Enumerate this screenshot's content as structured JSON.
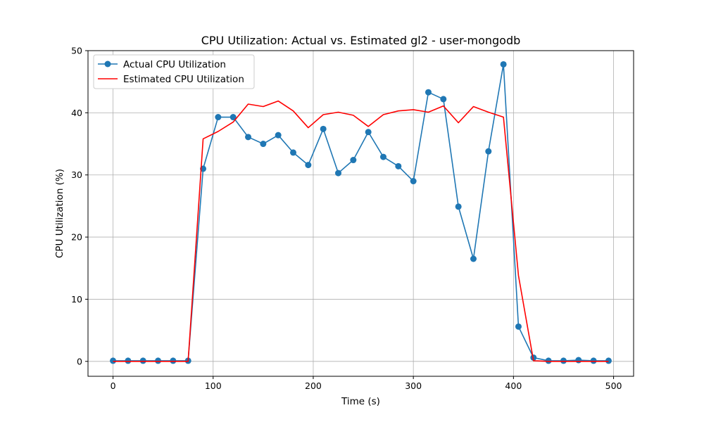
{
  "chart_data": {
    "type": "line",
    "title": "CPU Utilization: Actual vs. Estimated gl2 - user-mongodb",
    "xlabel": "Time (s)",
    "ylabel": "CPU Utilization (%)",
    "xlim": [
      -25,
      520
    ],
    "ylim": [
      -2.4,
      50
    ],
    "xticks": [
      0,
      100,
      200,
      300,
      400,
      500
    ],
    "yticks": [
      0,
      10,
      20,
      30,
      40,
      50
    ],
    "grid": true,
    "legend_position": "top-left",
    "x": [
      0,
      15,
      30,
      45,
      60,
      75,
      90,
      105,
      120,
      135,
      150,
      165,
      180,
      195,
      210,
      225,
      240,
      255,
      270,
      285,
      300,
      315,
      330,
      345,
      360,
      375,
      390,
      405,
      420,
      435,
      450,
      465,
      480,
      495
    ],
    "series": [
      {
        "name": "Actual CPU Utilization",
        "color": "#1f77b4",
        "marker": "circle",
        "values": [
          0.1,
          0.1,
          0.1,
          0.1,
          0.1,
          0.1,
          31.0,
          39.3,
          39.3,
          36.1,
          35.0,
          36.4,
          33.6,
          31.6,
          37.4,
          30.3,
          32.4,
          36.9,
          32.9,
          31.4,
          29.0,
          43.3,
          42.2,
          24.9,
          16.5,
          33.8,
          47.8,
          5.6,
          0.6,
          0.1,
          0.1,
          0.2,
          0.1,
          0.1
        ]
      },
      {
        "name": "Estimated CPU Utilization",
        "color": "#ff0000",
        "marker": "none",
        "values": [
          0.0,
          0.0,
          0.0,
          0.0,
          0.0,
          0.0,
          35.8,
          37.0,
          38.5,
          41.4,
          41.0,
          41.9,
          40.3,
          37.6,
          39.7,
          40.1,
          39.6,
          37.8,
          39.7,
          40.3,
          40.5,
          40.1,
          41.1,
          38.4,
          41.0,
          40.1,
          39.3,
          13.8,
          0.1,
          0.0,
          0.0,
          0.0,
          0.0,
          0.0
        ]
      }
    ]
  }
}
